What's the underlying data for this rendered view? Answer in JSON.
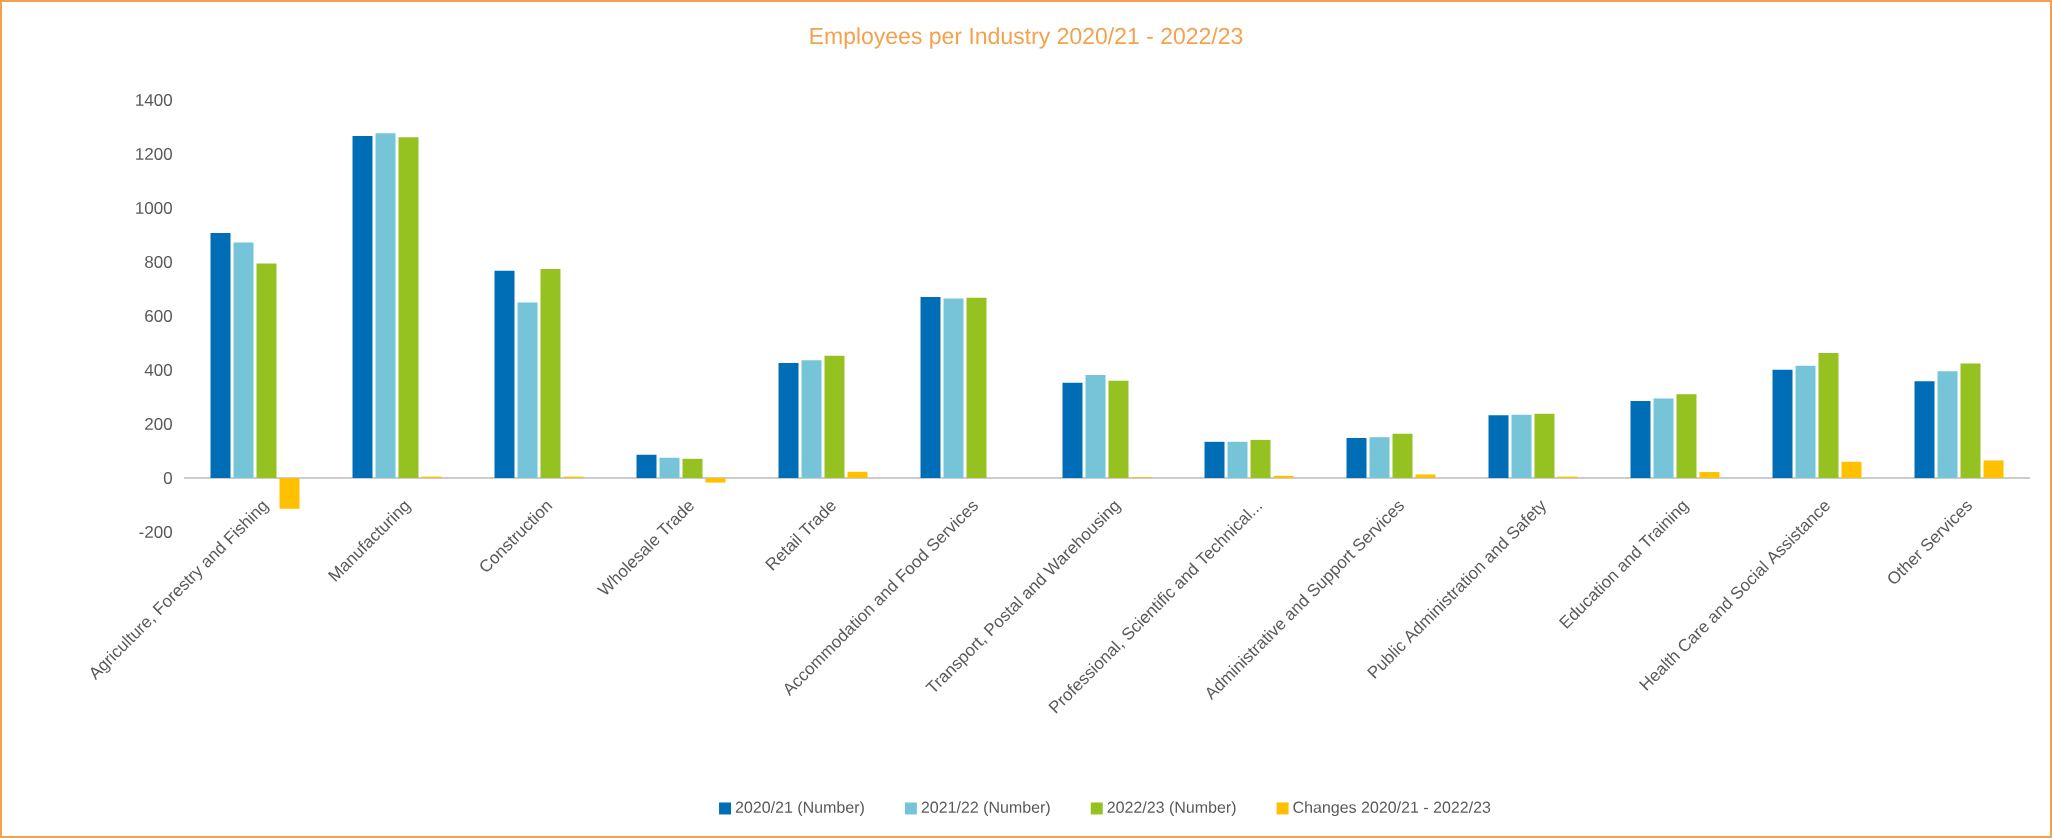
{
  "chart_data": {
    "type": "bar",
    "title": "Employees per Industry 2020/21 - 2022/23",
    "categories": [
      "Agriculture, Forestry and Fishing",
      "Manufacturing",
      "Construction",
      "Wholesale Trade",
      "Retail Trade",
      "Accommodation and Food Services",
      "Transport, Postal and Warehousing",
      "Professional, Scientific and Technical...",
      "Administrative and Support Services",
      "Public Administration and Safety",
      "Education and Training",
      "Health Care and Social Assistance",
      "Other Services"
    ],
    "series": [
      {
        "name": "2020/21 (Number)",
        "color": "#006eb6",
        "values": [
          907,
          1267,
          768,
          86,
          426,
          670,
          353,
          134,
          148,
          232,
          285,
          401,
          358
        ]
      },
      {
        "name": "2021/22 (Number)",
        "color": "#75c4d7",
        "values": [
          872,
          1277,
          650,
          75,
          436,
          665,
          381,
          134,
          151,
          234,
          294,
          416,
          395
        ]
      },
      {
        "name": "2022/23 (Number)",
        "color": "#95c121",
        "values": [
          794,
          1262,
          774,
          71,
          453,
          668,
          360,
          141,
          164,
          238,
          310,
          463,
          424
        ]
      },
      {
        "name": "Changes 2020/21 - 2022/23",
        "color": "#ffc000",
        "values": [
          -114,
          5,
          5,
          -17,
          23,
          0,
          3,
          8,
          13,
          5,
          22,
          60,
          65
        ]
      }
    ],
    "ylim": [
      -200,
      1400
    ],
    "yticks": [
      -200,
      0,
      200,
      400,
      600,
      800,
      1000,
      1200,
      1400
    ],
    "legend": "bottom"
  }
}
